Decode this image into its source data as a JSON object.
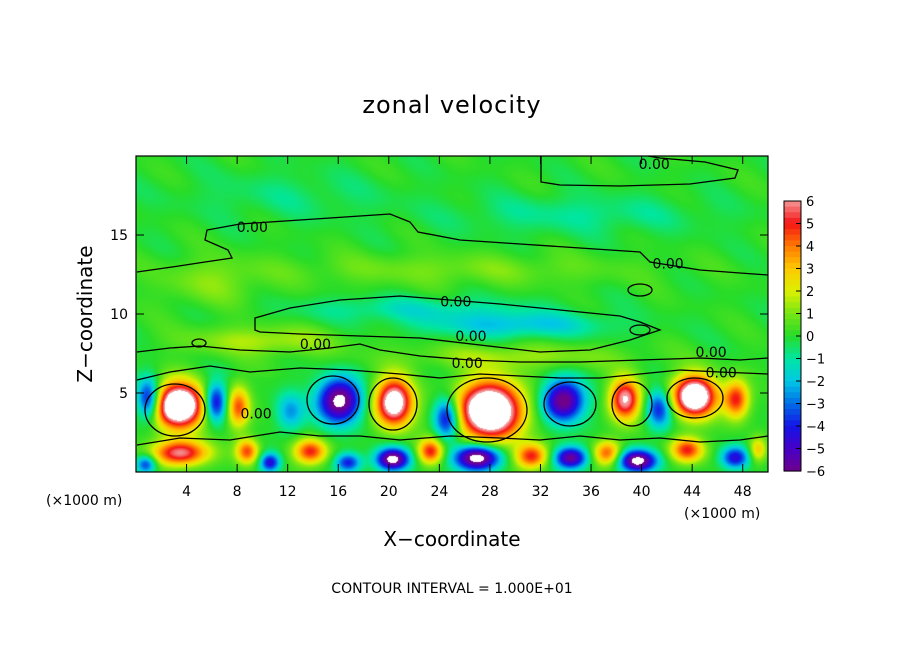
{
  "chart_data": {
    "type": "heatmap",
    "title": "zonal velocity",
    "xlabel": "X−coordinate",
    "ylabel": "Z−coordinate",
    "x_unit_left": "(×1000 m)",
    "x_unit_right": "(×1000 m)",
    "footer": "CONTOUR INTERVAL = 1.000E+01",
    "xlim": [
      0,
      50
    ],
    "ylim": [
      0,
      20
    ],
    "x_ticks": [
      4,
      8,
      12,
      16,
      20,
      24,
      28,
      32,
      36,
      40,
      44,
      48
    ],
    "x_tick_labels": [
      "4",
      "8",
      "12",
      "16",
      "20",
      "24",
      "28",
      "32",
      "36",
      "40",
      "44",
      "48"
    ],
    "y_ticks": [
      5,
      10,
      15
    ],
    "y_tick_labels": [
      "5",
      "10",
      "15"
    ],
    "colorbar": {
      "range": [
        -6,
        6
      ],
      "ticks": [
        6,
        5,
        4,
        3,
        2,
        1,
        0,
        -1,
        -2,
        -3,
        -4,
        -5,
        -6
      ],
      "tick_labels": [
        "6",
        "5",
        "4",
        "3",
        "2",
        "1",
        "0",
        "−1",
        "−2",
        "−3",
        "−4",
        "−5",
        "−6"
      ]
    },
    "contour_labels": [
      {
        "text": "0.00",
        "x": 41,
        "y": 19.5
      },
      {
        "text": "0.00",
        "x": 9.2,
        "y": 15.5
      },
      {
        "text": "0.00",
        "x": 42.1,
        "y": 13.2
      },
      {
        "text": "0.00",
        "x": 25.3,
        "y": 10.8
      },
      {
        "text": "0.00",
        "x": 26.5,
        "y": 8.6
      },
      {
        "text": "0.00",
        "x": 14.2,
        "y": 8.1
      },
      {
        "text": "0.00",
        "x": 26.2,
        "y": 6.9
      },
      {
        "text": "0.00",
        "x": 45.5,
        "y": 7.6
      },
      {
        "text": "0.00",
        "x": 46.3,
        "y": 6.3
      },
      {
        "text": "0.00",
        "x": 9.5,
        "y": 3.7
      }
    ],
    "features": [
      {
        "kind": "max",
        "x": 3.4,
        "y": 4.2,
        "amp": 10,
        "sx": 1.9,
        "sy": 1.4
      },
      {
        "kind": "min",
        "x": 1.0,
        "y": 4.6,
        "amp": -5,
        "sx": 0.9,
        "sy": 1.3
      },
      {
        "kind": "min",
        "x": 6.3,
        "y": 4.4,
        "amp": -5,
        "sx": 0.9,
        "sy": 1.2
      },
      {
        "kind": "max",
        "x": 8.1,
        "y": 4.1,
        "amp": 4.5,
        "sx": 0.9,
        "sy": 1.3
      },
      {
        "kind": "min",
        "x": 12.2,
        "y": 3.8,
        "amp": -2.5,
        "sx": 1.1,
        "sy": 1.2
      },
      {
        "kind": "min",
        "x": 16.1,
        "y": 4.5,
        "amp": -7,
        "sx": 1.7,
        "sy": 1.4
      },
      {
        "kind": "max",
        "x": 20.4,
        "y": 4.4,
        "amp": 8,
        "sx": 1.5,
        "sy": 1.5
      },
      {
        "kind": "max",
        "x": 28.0,
        "y": 3.9,
        "amp": 10,
        "sx": 2.5,
        "sy": 1.8
      },
      {
        "kind": "min",
        "x": 24.6,
        "y": 3.4,
        "amp": -5,
        "sx": 1.0,
        "sy": 1.3
      },
      {
        "kind": "min",
        "x": 33.8,
        "y": 4.5,
        "amp": -6.5,
        "sx": 1.6,
        "sy": 1.3
      },
      {
        "kind": "max",
        "x": 38.7,
        "y": 4.6,
        "amp": 6.5,
        "sx": 1.2,
        "sy": 1.3
      },
      {
        "kind": "min",
        "x": 41.4,
        "y": 4.0,
        "amp": -4,
        "sx": 1.0,
        "sy": 1.2
      },
      {
        "kind": "max",
        "x": 44.2,
        "y": 4.8,
        "amp": 9,
        "sx": 1.7,
        "sy": 1.3
      },
      {
        "kind": "max",
        "x": 47.5,
        "y": 4.6,
        "amp": 5,
        "sx": 1.0,
        "sy": 1.2
      },
      {
        "kind": "max",
        "x": 3.5,
        "y": 1.2,
        "amp": 6,
        "sx": 2.2,
        "sy": 0.8
      },
      {
        "kind": "min",
        "x": 0.8,
        "y": 0.5,
        "amp": -4,
        "sx": 0.8,
        "sy": 0.6
      },
      {
        "kind": "max",
        "x": 8.8,
        "y": 1.3,
        "amp": 4.5,
        "sx": 0.9,
        "sy": 0.8
      },
      {
        "kind": "min",
        "x": 10.6,
        "y": 0.6,
        "amp": -4.5,
        "sx": 0.8,
        "sy": 0.6
      },
      {
        "kind": "max",
        "x": 13.8,
        "y": 1.3,
        "amp": 5,
        "sx": 1.3,
        "sy": 0.8
      },
      {
        "kind": "min",
        "x": 16.8,
        "y": 0.6,
        "amp": -4,
        "sx": 1.0,
        "sy": 0.6
      },
      {
        "kind": "min",
        "x": 20.3,
        "y": 0.8,
        "amp": -7,
        "sx": 1.3,
        "sy": 0.7
      },
      {
        "kind": "max",
        "x": 23.3,
        "y": 1.3,
        "amp": 5,
        "sx": 1.0,
        "sy": 0.8
      },
      {
        "kind": "min",
        "x": 27.0,
        "y": 0.9,
        "amp": -7.5,
        "sx": 1.8,
        "sy": 0.8
      },
      {
        "kind": "max",
        "x": 31.3,
        "y": 1.0,
        "amp": 5,
        "sx": 1.3,
        "sy": 0.8
      },
      {
        "kind": "min",
        "x": 34.4,
        "y": 0.9,
        "amp": -6,
        "sx": 1.3,
        "sy": 0.7
      },
      {
        "kind": "max",
        "x": 37.3,
        "y": 1.2,
        "amp": 4.5,
        "sx": 1.1,
        "sy": 0.8
      },
      {
        "kind": "min",
        "x": 39.7,
        "y": 0.7,
        "amp": -7,
        "sx": 1.5,
        "sy": 0.7
      },
      {
        "kind": "max",
        "x": 43.6,
        "y": 1.4,
        "amp": 5,
        "sx": 1.3,
        "sy": 0.8
      },
      {
        "kind": "min",
        "x": 47.4,
        "y": 0.9,
        "amp": -4.5,
        "sx": 1.1,
        "sy": 0.7
      },
      {
        "kind": "max",
        "x": 49.2,
        "y": 1.4,
        "amp": 3,
        "sx": 0.7,
        "sy": 0.8
      },
      {
        "kind": "min",
        "x": 30.0,
        "y": 9.3,
        "amp": -2,
        "sx": 7,
        "sy": 0.8
      },
      {
        "kind": "min",
        "x": 22.0,
        "y": 10.3,
        "amp": -1.2,
        "sx": 9,
        "sy": 0.8
      },
      {
        "kind": "max",
        "x": 10.0,
        "y": 8.3,
        "amp": 1.6,
        "sx": 6,
        "sy": 0.9
      },
      {
        "kind": "max",
        "x": 30.0,
        "y": 7.3,
        "amp": 1.3,
        "sx": 9,
        "sy": 0.8
      },
      {
        "kind": "max",
        "x": 25.0,
        "y": 12.8,
        "amp": 0.9,
        "sx": 14,
        "sy": 1.0
      },
      {
        "kind": "max",
        "x": 6.0,
        "y": 12.0,
        "amp": 1.0,
        "sx": 4,
        "sy": 1.5
      },
      {
        "kind": "min",
        "x": 35.0,
        "y": 16.3,
        "amp": -0.9,
        "sx": 10,
        "sy": 1.2
      },
      {
        "kind": "min",
        "x": 12.0,
        "y": 17.5,
        "amp": -0.6,
        "sx": 8,
        "sy": 1.5
      }
    ]
  }
}
